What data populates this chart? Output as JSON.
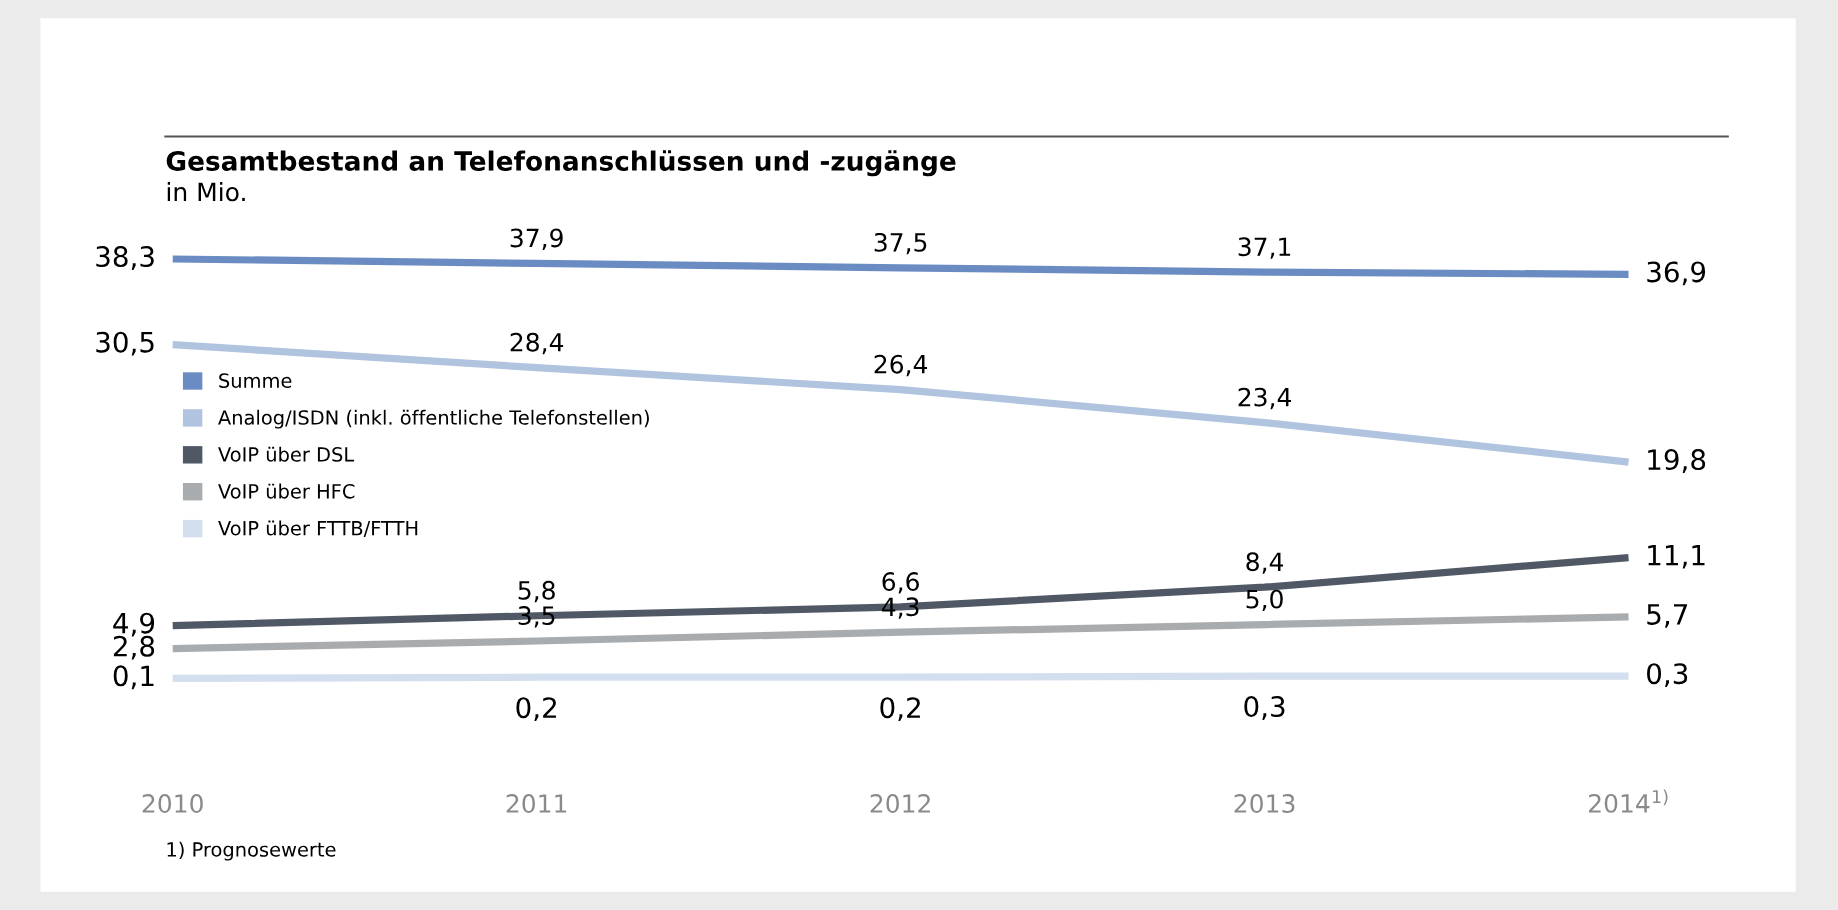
{
  "chart_data": {
    "type": "line",
    "title": "Gesamtbestand an Telefonanschlüssen und -zugänge",
    "subtitle": "in Mio.",
    "categories": [
      "2010",
      "2011",
      "2012",
      "2013",
      "2014$^{1)}$"
    ],
    "series": [
      {
        "name": "Summe",
        "color": "#6b8cc2",
        "values": [
          38.3,
          37.9,
          37.5,
          37.1,
          36.9
        ],
        "value_labels": [
          "38,3",
          "37,9",
          "37,5",
          "37,1",
          "36,9"
        ]
      },
      {
        "name": "Analog/ISDN (inkl. öffentliche Telefonstellen)",
        "color": "#b1c4df",
        "values": [
          30.5,
          28.4,
          26.4,
          23.4,
          19.8
        ],
        "value_labels": [
          "30,5",
          "28,4",
          "26,4",
          "23,4",
          "19,8"
        ]
      },
      {
        "name": "VoIP über DSL",
        "color": "#4f5864",
        "values": [
          4.9,
          5.8,
          6.6,
          8.4,
          11.1
        ],
        "value_labels": [
          "4,9",
          "5,8",
          "6,6",
          "8,4",
          "11,1"
        ]
      },
      {
        "name": "VoIP über HFC",
        "color": "#a9acaf",
        "values": [
          2.8,
          3.5,
          4.3,
          5.0,
          5.7
        ],
        "value_labels": [
          "2,8",
          "3,5",
          "4,3",
          "5,0",
          "5,7"
        ]
      },
      {
        "name": "VoIP über FTTB/FTTH",
        "color": "#d3deef",
        "values": [
          0.1,
          0.2,
          0.2,
          0.3,
          0.3
        ],
        "value_labels": [
          "0,1",
          "0,2",
          "0,2",
          "0,3",
          "0,3"
        ]
      }
    ],
    "legend": "left",
    "grid": false,
    "marker": "none",
    "line_style": "solid",
    "annotations": [
      "1) Prognosewerte"
    ]
  }
}
